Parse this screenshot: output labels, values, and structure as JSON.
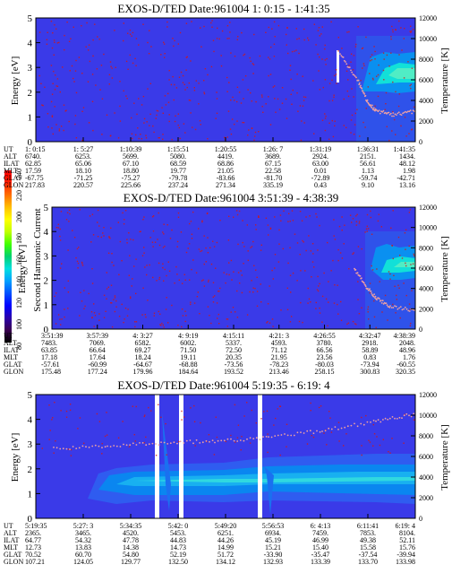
{
  "colorbar": {
    "label": "Second Harmonic Current",
    "ticks": [
      "240",
      "220",
      "200",
      "180",
      "160",
      "140",
      "120",
      "100",
      "80"
    ],
    "colors": [
      "#000000",
      "#3a0050",
      "#2a00aa",
      "#0000ff",
      "#0050ff",
      "#00a0ff",
      "#00e0e0",
      "#00d070",
      "#40ff00",
      "#c0ff00",
      "#ffff00",
      "#ffc000",
      "#ff7000",
      "#ff2000",
      "#ff0000"
    ]
  },
  "chart_data": [
    {
      "type": "heatmap",
      "title": "EXOS-D/TED   Date:961004   1: 0:15 - 1:41:35",
      "ylabel": "Energy [eV]",
      "y2label": "Temperature [K]",
      "ylim": [
        0,
        5
      ],
      "y_ticks": [
        "0",
        "1",
        "2",
        "3",
        "4",
        "5"
      ],
      "y2lim": [
        0,
        12000
      ],
      "y2_ticks": [
        "0",
        "2000",
        "4000",
        "6000",
        "8000",
        "10000",
        "12000"
      ],
      "table_labels": [
        "UT",
        "ALT",
        "ILAT",
        "MLT",
        "GLAT",
        "GLON"
      ],
      "columns": [
        [
          "1: 0:15",
          "6740.",
          "62.85",
          "17.59",
          "-67.75",
          "217.83"
        ],
        [
          "1: 5:27",
          "6253.",
          "65.06",
          "18.10",
          "-71.25",
          "220.57"
        ],
        [
          "1:10:39",
          "5699.",
          "67.10",
          "18.80",
          "-75.27",
          "225.66"
        ],
        [
          "1:15:51",
          "5080.",
          "68.59",
          "19.77",
          "-79.78",
          "237.24"
        ],
        [
          "1:20:55",
          "4419.",
          "68.86",
          "21.05",
          "-83.66",
          "271.34"
        ],
        [
          "1:26: 7",
          "3689.",
          "67.15",
          "22.58",
          "-81.70",
          "335.19"
        ],
        [
          "1:31:19",
          "2924.",
          "63.00",
          "0.01",
          "-72.89",
          "0.43"
        ],
        [
          "1:36:31",
          "2151.",
          "56.61",
          "1.13",
          "-59.74",
          "9.10"
        ],
        [
          "1:41:35",
          "1434.",
          "48.12",
          "1.98",
          "-42.71",
          "13.16"
        ]
      ]
    },
    {
      "type": "heatmap",
      "title": "EXOS-D/TED   Date:961004   3:51:39 - 4:38:39",
      "ylabel": "Energy [eV]",
      "y2label": "Temperature [K]",
      "ylim": [
        0,
        5
      ],
      "y_ticks": [
        "0",
        "1",
        "2",
        "3",
        "4",
        "5"
      ],
      "y2lim": [
        0,
        12000
      ],
      "y2_ticks": [
        "0",
        "2000",
        "4000",
        "6000",
        "8000",
        "10000",
        "12000"
      ],
      "table_labels": [
        "UT",
        "ALT",
        "ILAT",
        "MLT",
        "GLAT",
        "GLON"
      ],
      "columns": [
        [
          "3:51:39",
          "7483.",
          "63.85",
          "17.18",
          "-57.61",
          "175.48"
        ],
        [
          "3:57:39",
          "7069.",
          "66.64",
          "17.64",
          "-60.99",
          "177.24"
        ],
        [
          "4: 3:27",
          "6582.",
          "69.27",
          "18.24",
          "-64.67",
          "179.96"
        ],
        [
          "4: 9:19",
          "6002.",
          "71.50",
          "19.11",
          "-68.88",
          "184.64"
        ],
        [
          "4:15:11",
          "5337.",
          "72.50",
          "20.35",
          "-73.56",
          "193.52"
        ],
        [
          "4:21: 3",
          "4593.",
          "71.12",
          "21.95",
          "-78.23",
          "213.46"
        ],
        [
          "4:26:55",
          "3780.",
          "66.56",
          "23.56",
          "-80.03",
          "258.15"
        ],
        [
          "4:32:47",
          "2918.",
          "58.89",
          "0.83",
          "-73.94",
          "300.83"
        ],
        [
          "4:38:39",
          "2048.",
          "48.96",
          "1.76",
          "-60.55",
          "320.35"
        ]
      ]
    },
    {
      "type": "heatmap",
      "title": "EXOS-D/TED   Date:961004   5:19:35 - 6:19: 4",
      "ylabel": "Energy [eV]",
      "y2label": "Temperature [K]",
      "ylim": [
        0,
        5
      ],
      "y_ticks": [
        "0",
        "1",
        "2",
        "3",
        "4",
        "5"
      ],
      "y2lim": [
        0,
        12000
      ],
      "y2_ticks": [
        "0",
        "2000",
        "4000",
        "6000",
        "8000",
        "10000",
        "12000"
      ],
      "table_labels": [
        "UT",
        "ALT",
        "ILAT",
        "MLT",
        "GLAT",
        "GLON"
      ],
      "columns": [
        [
          "5:19:35",
          "2365.",
          "64.77",
          "12.73",
          "70.52",
          "107.21"
        ],
        [
          "5:27: 3",
          "3465.",
          "54.32",
          "13.83",
          "60.70",
          "124.05"
        ],
        [
          "5:34:35",
          "4520.",
          "47.78",
          "14.38",
          "54.80",
          "129.77"
        ],
        [
          "5:42: 0",
          "5453.",
          "44.83",
          "14.73",
          "52.19",
          "132.50"
        ],
        [
          "5:49:20",
          "6251.",
          "44.26",
          "14.99",
          "51.72",
          "134.12"
        ],
        [
          "5:56:53",
          "6934.",
          "45.19",
          "15.21",
          "-33.90",
          "132.93"
        ],
        [
          "6: 4:13",
          "7459.",
          "46.99",
          "15.40",
          "-35.47",
          "133.39"
        ],
        [
          "6:11:41",
          "7853.",
          "49.38",
          "15.58",
          "-37.54",
          "133.70"
        ],
        [
          "6:19: 4",
          "8104.",
          "52.11",
          "15.76",
          "-39.94",
          "133.98"
        ]
      ]
    }
  ]
}
